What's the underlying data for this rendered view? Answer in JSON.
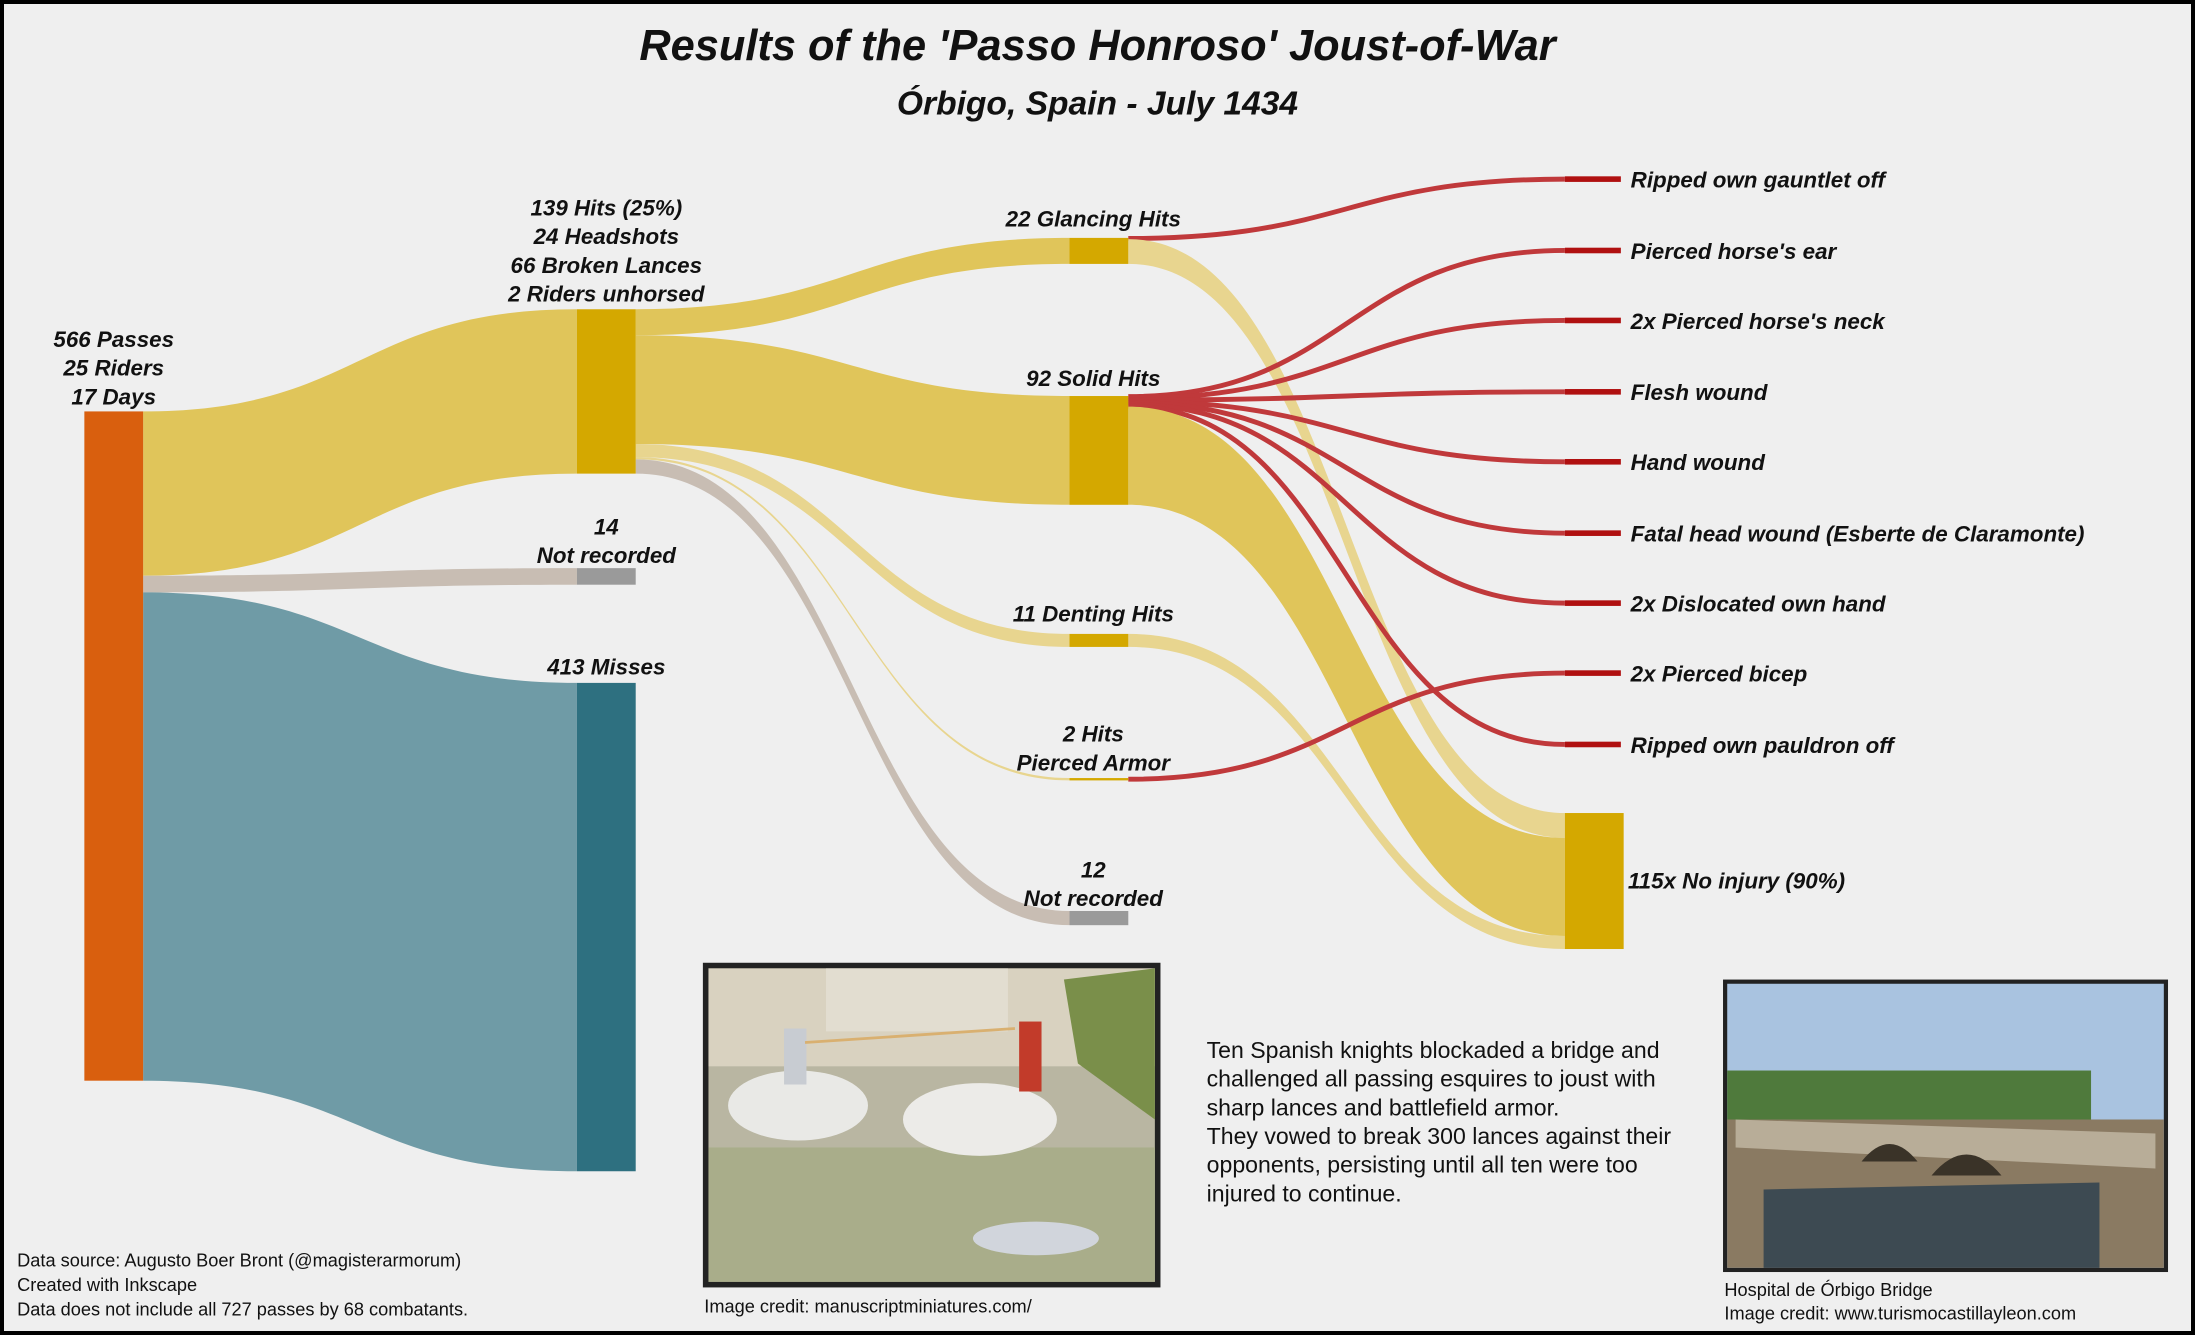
{
  "chart_data": {
    "type": "sankey",
    "title": "Results of the 'Passo Honroso' Joust-of-War",
    "subtitle": "Órbigo, Spain - July 1434",
    "nodes": [
      {
        "id": "passes",
        "label_lines": [
          "566 Passes",
          "25 Riders",
          "17 Days"
        ],
        "color": "#d95f0e"
      },
      {
        "id": "hits",
        "label_lines": [
          "139 Hits (25%)",
          "24 Headshots",
          "66 Broken Lances",
          "2 Riders unhorsed"
        ],
        "color": "#d4a800"
      },
      {
        "id": "nr14",
        "label_lines": [
          "14",
          "Not recorded"
        ],
        "color": "#9a9a9a"
      },
      {
        "id": "misses",
        "label_lines": [
          "413 Misses"
        ],
        "color": "#2e7080"
      },
      {
        "id": "glancing",
        "label_lines": [
          "22 Glancing Hits"
        ],
        "color": "#d4a800"
      },
      {
        "id": "solid",
        "label_lines": [
          "92 Solid Hits"
        ],
        "color": "#d4a800"
      },
      {
        "id": "denting",
        "label_lines": [
          "11 Denting Hits"
        ],
        "color": "#d4a800"
      },
      {
        "id": "pierced",
        "label_lines": [
          "2 Hits",
          "Pierced Armor"
        ],
        "color": "#d4a800"
      },
      {
        "id": "nr12",
        "label_lines": [
          "12",
          "Not recorded"
        ],
        "color": "#9a9a9a"
      },
      {
        "id": "gauntlet",
        "label_lines": [
          "Ripped own gauntlet off"
        ],
        "color": "#b01010"
      },
      {
        "id": "ear",
        "label_lines": [
          "Pierced horse's ear"
        ],
        "color": "#b01010"
      },
      {
        "id": "neck",
        "label_lines": [
          "2x Pierced horse's neck"
        ],
        "color": "#b01010"
      },
      {
        "id": "flesh",
        "label_lines": [
          "Flesh wound"
        ],
        "color": "#b01010"
      },
      {
        "id": "hand",
        "label_lines": [
          "Hand wound"
        ],
        "color": "#b01010"
      },
      {
        "id": "fatal",
        "label_lines": [
          "Fatal head wound (Esberte de Claramonte)"
        ],
        "color": "#b01010"
      },
      {
        "id": "dislocated",
        "label_lines": [
          "2x Dislocated own hand"
        ],
        "color": "#b01010"
      },
      {
        "id": "bicep",
        "label_lines": [
          "2x Pierced bicep"
        ],
        "color": "#b01010"
      },
      {
        "id": "pauldron",
        "label_lines": [
          "Ripped own pauldron off"
        ],
        "color": "#b01010"
      },
      {
        "id": "noinjury",
        "label_lines": [
          "115x No injury (90%)"
        ],
        "color": "#d4a800"
      }
    ],
    "links": [
      {
        "source": "passes",
        "target": "hits",
        "value": 139,
        "color": "#e0c55a"
      },
      {
        "source": "passes",
        "target": "nr14",
        "value": 14,
        "color": "#c8bdb3"
      },
      {
        "source": "passes",
        "target": "misses",
        "value": 413,
        "color": "#6f9ba6"
      },
      {
        "source": "hits",
        "target": "glancing",
        "value": 22,
        "color": "#e0c55a"
      },
      {
        "source": "hits",
        "target": "solid",
        "value": 92,
        "color": "#e0c55a"
      },
      {
        "source": "hits",
        "target": "denting",
        "value": 11,
        "color": "#e8d58f"
      },
      {
        "source": "hits",
        "target": "pierced",
        "value": 2,
        "color": "#e8d58f"
      },
      {
        "source": "hits",
        "target": "nr12",
        "value": 12,
        "color": "#c8bdb3"
      },
      {
        "source": "glancing",
        "target": "gauntlet",
        "value": 1,
        "color": "#c0393b"
      },
      {
        "source": "glancing",
        "target": "noinjury",
        "value": 21,
        "color": "#e8d58f"
      },
      {
        "source": "solid",
        "target": "ear",
        "value": 1,
        "color": "#c0393b"
      },
      {
        "source": "solid",
        "target": "neck",
        "value": 2,
        "color": "#c0393b"
      },
      {
        "source": "solid",
        "target": "flesh",
        "value": 1,
        "color": "#c0393b"
      },
      {
        "source": "solid",
        "target": "hand",
        "value": 1,
        "color": "#c0393b"
      },
      {
        "source": "solid",
        "target": "fatal",
        "value": 1,
        "color": "#c0393b"
      },
      {
        "source": "solid",
        "target": "dislocated",
        "value": 2,
        "color": "#c0393b"
      },
      {
        "source": "solid",
        "target": "pauldron",
        "value": 1,
        "color": "#c0393b"
      },
      {
        "source": "solid",
        "target": "noinjury",
        "value": 83,
        "color": "#e0c55a"
      },
      {
        "source": "denting",
        "target": "noinjury",
        "value": 11,
        "color": "#e8d58f"
      },
      {
        "source": "pierced",
        "target": "bicep",
        "value": 2,
        "color": "#c0393b"
      }
    ]
  },
  "description": [
    "Ten Spanish knights blockaded a bridge and",
    "challenged all passing esquires to joust with",
    "sharp lances and battlefield armor.",
    "They vowed to break 300 lances against their",
    "opponents, persisting until all ten were too",
    "injured to continue."
  ],
  "footer": [
    "Data source: Augusto Boer Bront (@magisterarmorum)",
    "Created with Inkscape",
    "Data does not include all 727 passes by 68 combatants."
  ],
  "manuscript_credit": "Image credit: manuscriptminiatures.com/",
  "bridge_caption": [
    "Hospital de Órbigo Bridge",
    "Image credit: www.turismocastillayleon.com"
  ]
}
